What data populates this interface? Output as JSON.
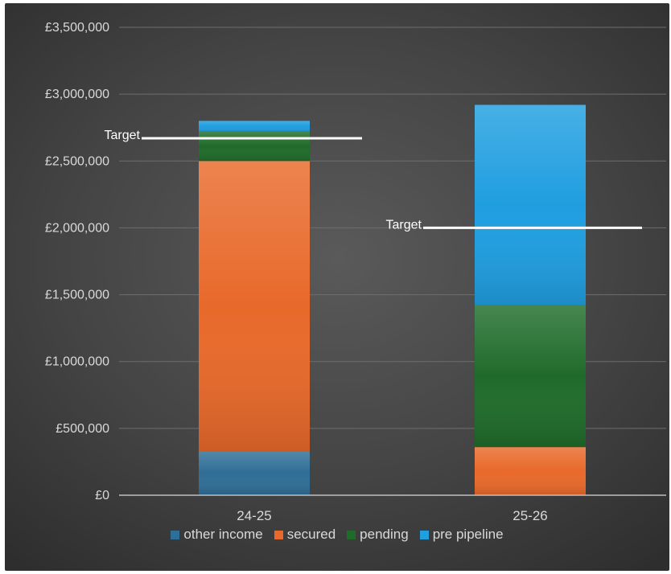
{
  "chart_data": {
    "type": "bar",
    "stacked": true,
    "categories": [
      "24-25",
      "25-26"
    ],
    "series": [
      {
        "name": "other income",
        "color": "#2f6e96",
        "values": [
          330000,
          0
        ]
      },
      {
        "name": "secured",
        "color": "#e8692a",
        "values": [
          2170000,
          360000
        ]
      },
      {
        "name": "pending",
        "color": "#1f6b2a",
        "values": [
          220000,
          1060000
        ]
      },
      {
        "name": "pre pipeline",
        "color": "#1f9ee0",
        "values": [
          80000,
          1500000
        ]
      }
    ],
    "targets": [
      {
        "label": "Target",
        "category": "24-25",
        "value": 2670000
      },
      {
        "label": "Target",
        "category": "25-26",
        "value": 2000000
      }
    ],
    "y_ticks": [
      {
        "value": 0,
        "label": "£0"
      },
      {
        "value": 500000,
        "label": "£500,000"
      },
      {
        "value": 1000000,
        "label": "£1,000,000"
      },
      {
        "value": 1500000,
        "label": "£1,500,000"
      },
      {
        "value": 2000000,
        "label": "£2,000,000"
      },
      {
        "value": 2500000,
        "label": "£2,500,000"
      },
      {
        "value": 3000000,
        "label": "£3,000,000"
      },
      {
        "value": 3500000,
        "label": "£3,500,000"
      }
    ],
    "ylim": [
      0,
      3500000
    ],
    "grid": true,
    "legend_position": "bottom"
  }
}
